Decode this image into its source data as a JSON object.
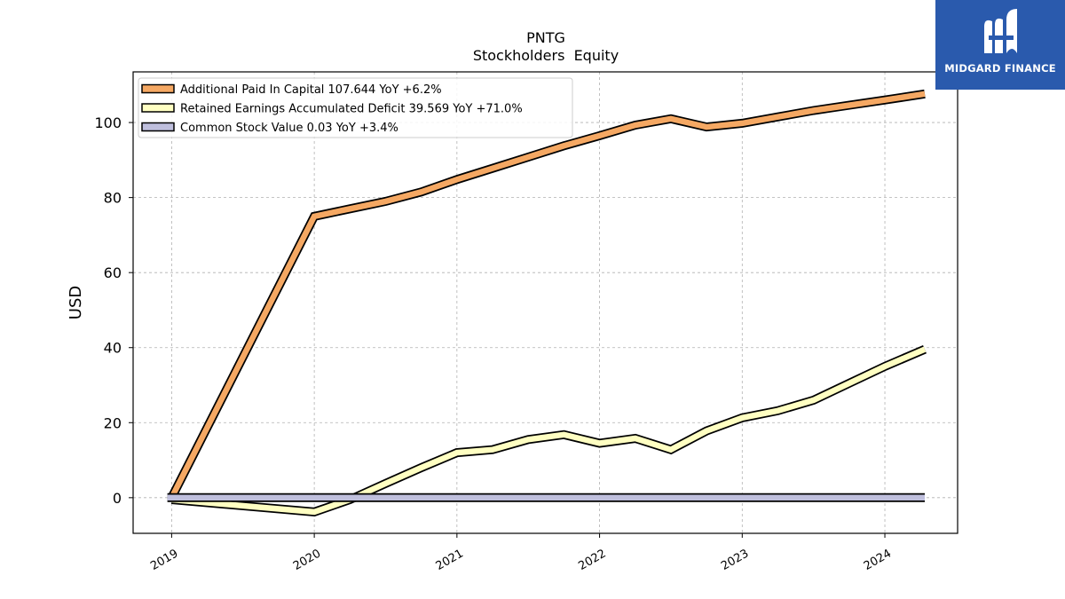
{
  "chart_data": {
    "type": "line",
    "title": "PNTG",
    "subtitle": "Stockholders  Equity",
    "xlabel": "",
    "ylabel": "USD",
    "xlim": [
      2018.73,
      2024.51
    ],
    "ylim": [
      -9.5,
      113.5
    ],
    "x_ticks": [
      2019,
      2020,
      2021,
      2022,
      2023,
      2024
    ],
    "y_ticks": [
      0,
      20,
      40,
      60,
      80,
      100
    ],
    "grid": true,
    "legend_position": "top-left",
    "series": [
      {
        "name": "Additional Paid In Capital  107.644 YoY +6.2%",
        "color": "#f5a863",
        "x": [
          2019.0,
          2020.0,
          2020.25,
          2020.5,
          2020.75,
          2021.0,
          2021.25,
          2021.5,
          2021.75,
          2022.0,
          2022.25,
          2022.5,
          2022.75,
          2023.0,
          2023.25,
          2023.5,
          2023.75,
          2024.0,
          2024.28
        ],
        "y": [
          0.0,
          75.0,
          77.0,
          79.0,
          81.5,
          84.8,
          87.8,
          90.8,
          93.8,
          96.5,
          99.3,
          101.0,
          98.8,
          99.8,
          101.5,
          103.2,
          104.6,
          106.0,
          107.644
        ]
      },
      {
        "name": "Retained Earnings Accumulated Deficit  39.569 YoY +71.0%",
        "color": "#ffffc2",
        "x": [
          2019.0,
          2020.0,
          2020.25,
          2020.5,
          2020.75,
          2021.0,
          2021.25,
          2021.5,
          2021.75,
          2022.0,
          2022.25,
          2022.5,
          2022.75,
          2023.0,
          2023.25,
          2023.5,
          2023.75,
          2024.0,
          2024.28
        ],
        "y": [
          -0.5,
          -3.8,
          -0.5,
          3.8,
          8.0,
          12.0,
          12.8,
          15.5,
          16.8,
          14.5,
          15.8,
          12.8,
          17.8,
          21.3,
          23.2,
          26.0,
          30.5,
          35.0,
          39.569
        ]
      },
      {
        "name": "Common Stock Value  0.03 YoY +3.4%",
        "color": "#bfbfdd",
        "x": [
          2018.97,
          2024.28
        ],
        "y": [
          0.03,
          0.03
        ]
      }
    ]
  },
  "watermark": {
    "text": "MIDGARD FINANCE"
  }
}
